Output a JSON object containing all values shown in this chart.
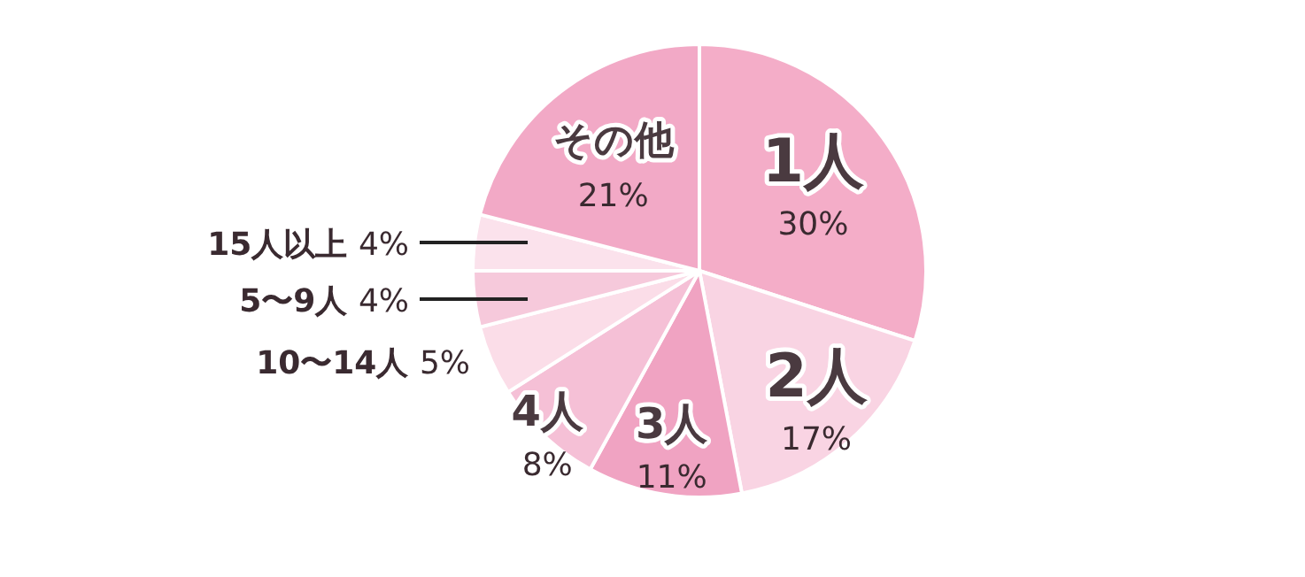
{
  "chart_data": {
    "type": "pie",
    "categories": [
      "1人",
      "2人",
      "3人",
      "4人",
      "10〜14人",
      "5〜9人",
      "15人以上",
      "その他"
    ],
    "values": [
      30,
      17,
      11,
      8,
      5,
      4,
      4,
      21
    ],
    "colors": [
      "#f4adc8",
      "#f9d4e3",
      "#f0a3c2",
      "#f5c0d6",
      "#fbdde8",
      "#f6c9db",
      "#fbe2ec",
      "#f2a9c6"
    ],
    "value_labels": [
      "30%",
      "17%",
      "11%",
      "8%",
      "5%",
      "4%",
      "4%",
      "21%"
    ]
  }
}
